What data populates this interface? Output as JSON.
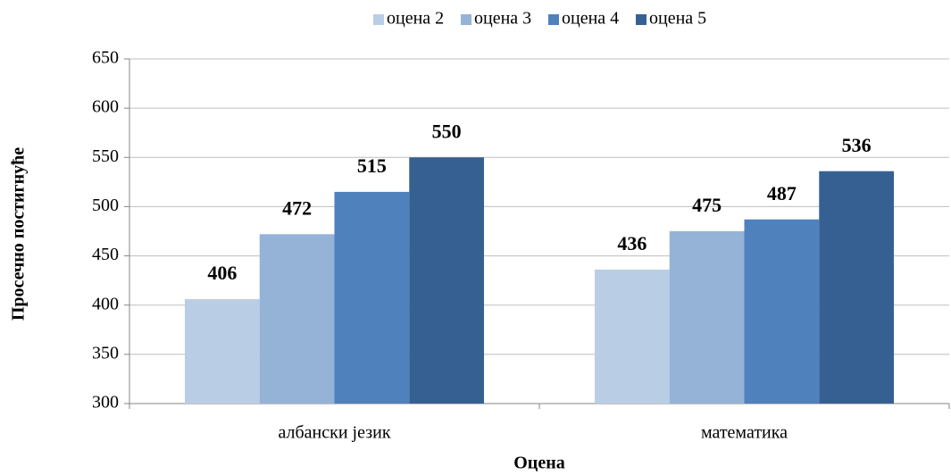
{
  "chart_data": {
    "type": "bar",
    "x_label": "Оцена",
    "y_label": "Просечно постигнуће",
    "categories": [
      "албански језик",
      "математика"
    ],
    "series": [
      {
        "name": "оцена 2",
        "color": "#b9cde5",
        "values": [
          406,
          436
        ]
      },
      {
        "name": "оцена 3",
        "color": "#95b3d7",
        "values": [
          472,
          475
        ]
      },
      {
        "name": "оцена 4",
        "color": "#4f81bd",
        "values": [
          515,
          487
        ]
      },
      {
        "name": "оцена 5",
        "color": "#376092",
        "values": [
          550,
          536
        ]
      }
    ],
    "ylim": [
      300,
      650
    ],
    "yticks": [
      300,
      350,
      400,
      450,
      500,
      550,
      600,
      650
    ],
    "grid": true,
    "legend": "top"
  }
}
